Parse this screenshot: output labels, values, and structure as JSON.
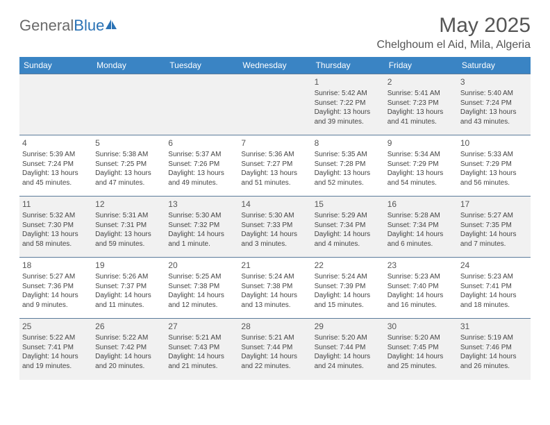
{
  "logo": {
    "text_gray": "General",
    "text_blue": "Blue"
  },
  "title": "May 2025",
  "location": "Chelghoum el Aid, Mila, Algeria",
  "colors": {
    "header_bg": "#3a84c4",
    "header_text": "#ffffff",
    "row_alt_bg": "#f1f1f1",
    "row_bg": "#ffffff",
    "border": "#5a7a9a",
    "body_text": "#444444",
    "title_text": "#555555"
  },
  "day_headers": [
    "Sunday",
    "Monday",
    "Tuesday",
    "Wednesday",
    "Thursday",
    "Friday",
    "Saturday"
  ],
  "weeks": [
    [
      {
        "blank": true
      },
      {
        "blank": true
      },
      {
        "blank": true
      },
      {
        "blank": true
      },
      {
        "num": "1",
        "sunrise": "Sunrise: 5:42 AM",
        "sunset": "Sunset: 7:22 PM",
        "daylight": "Daylight: 13 hours and 39 minutes."
      },
      {
        "num": "2",
        "sunrise": "Sunrise: 5:41 AM",
        "sunset": "Sunset: 7:23 PM",
        "daylight": "Daylight: 13 hours and 41 minutes."
      },
      {
        "num": "3",
        "sunrise": "Sunrise: 5:40 AM",
        "sunset": "Sunset: 7:24 PM",
        "daylight": "Daylight: 13 hours and 43 minutes."
      }
    ],
    [
      {
        "num": "4",
        "sunrise": "Sunrise: 5:39 AM",
        "sunset": "Sunset: 7:24 PM",
        "daylight": "Daylight: 13 hours and 45 minutes."
      },
      {
        "num": "5",
        "sunrise": "Sunrise: 5:38 AM",
        "sunset": "Sunset: 7:25 PM",
        "daylight": "Daylight: 13 hours and 47 minutes."
      },
      {
        "num": "6",
        "sunrise": "Sunrise: 5:37 AM",
        "sunset": "Sunset: 7:26 PM",
        "daylight": "Daylight: 13 hours and 49 minutes."
      },
      {
        "num": "7",
        "sunrise": "Sunrise: 5:36 AM",
        "sunset": "Sunset: 7:27 PM",
        "daylight": "Daylight: 13 hours and 51 minutes."
      },
      {
        "num": "8",
        "sunrise": "Sunrise: 5:35 AM",
        "sunset": "Sunset: 7:28 PM",
        "daylight": "Daylight: 13 hours and 52 minutes."
      },
      {
        "num": "9",
        "sunrise": "Sunrise: 5:34 AM",
        "sunset": "Sunset: 7:29 PM",
        "daylight": "Daylight: 13 hours and 54 minutes."
      },
      {
        "num": "10",
        "sunrise": "Sunrise: 5:33 AM",
        "sunset": "Sunset: 7:29 PM",
        "daylight": "Daylight: 13 hours and 56 minutes."
      }
    ],
    [
      {
        "num": "11",
        "sunrise": "Sunrise: 5:32 AM",
        "sunset": "Sunset: 7:30 PM",
        "daylight": "Daylight: 13 hours and 58 minutes."
      },
      {
        "num": "12",
        "sunrise": "Sunrise: 5:31 AM",
        "sunset": "Sunset: 7:31 PM",
        "daylight": "Daylight: 13 hours and 59 minutes."
      },
      {
        "num": "13",
        "sunrise": "Sunrise: 5:30 AM",
        "sunset": "Sunset: 7:32 PM",
        "daylight": "Daylight: 14 hours and 1 minute."
      },
      {
        "num": "14",
        "sunrise": "Sunrise: 5:30 AM",
        "sunset": "Sunset: 7:33 PM",
        "daylight": "Daylight: 14 hours and 3 minutes."
      },
      {
        "num": "15",
        "sunrise": "Sunrise: 5:29 AM",
        "sunset": "Sunset: 7:34 PM",
        "daylight": "Daylight: 14 hours and 4 minutes."
      },
      {
        "num": "16",
        "sunrise": "Sunrise: 5:28 AM",
        "sunset": "Sunset: 7:34 PM",
        "daylight": "Daylight: 14 hours and 6 minutes."
      },
      {
        "num": "17",
        "sunrise": "Sunrise: 5:27 AM",
        "sunset": "Sunset: 7:35 PM",
        "daylight": "Daylight: 14 hours and 7 minutes."
      }
    ],
    [
      {
        "num": "18",
        "sunrise": "Sunrise: 5:27 AM",
        "sunset": "Sunset: 7:36 PM",
        "daylight": "Daylight: 14 hours and 9 minutes."
      },
      {
        "num": "19",
        "sunrise": "Sunrise: 5:26 AM",
        "sunset": "Sunset: 7:37 PM",
        "daylight": "Daylight: 14 hours and 11 minutes."
      },
      {
        "num": "20",
        "sunrise": "Sunrise: 5:25 AM",
        "sunset": "Sunset: 7:38 PM",
        "daylight": "Daylight: 14 hours and 12 minutes."
      },
      {
        "num": "21",
        "sunrise": "Sunrise: 5:24 AM",
        "sunset": "Sunset: 7:38 PM",
        "daylight": "Daylight: 14 hours and 13 minutes."
      },
      {
        "num": "22",
        "sunrise": "Sunrise: 5:24 AM",
        "sunset": "Sunset: 7:39 PM",
        "daylight": "Daylight: 14 hours and 15 minutes."
      },
      {
        "num": "23",
        "sunrise": "Sunrise: 5:23 AM",
        "sunset": "Sunset: 7:40 PM",
        "daylight": "Daylight: 14 hours and 16 minutes."
      },
      {
        "num": "24",
        "sunrise": "Sunrise: 5:23 AM",
        "sunset": "Sunset: 7:41 PM",
        "daylight": "Daylight: 14 hours and 18 minutes."
      }
    ],
    [
      {
        "num": "25",
        "sunrise": "Sunrise: 5:22 AM",
        "sunset": "Sunset: 7:41 PM",
        "daylight": "Daylight: 14 hours and 19 minutes."
      },
      {
        "num": "26",
        "sunrise": "Sunrise: 5:22 AM",
        "sunset": "Sunset: 7:42 PM",
        "daylight": "Daylight: 14 hours and 20 minutes."
      },
      {
        "num": "27",
        "sunrise": "Sunrise: 5:21 AM",
        "sunset": "Sunset: 7:43 PM",
        "daylight": "Daylight: 14 hours and 21 minutes."
      },
      {
        "num": "28",
        "sunrise": "Sunrise: 5:21 AM",
        "sunset": "Sunset: 7:44 PM",
        "daylight": "Daylight: 14 hours and 22 minutes."
      },
      {
        "num": "29",
        "sunrise": "Sunrise: 5:20 AM",
        "sunset": "Sunset: 7:44 PM",
        "daylight": "Daylight: 14 hours and 24 minutes."
      },
      {
        "num": "30",
        "sunrise": "Sunrise: 5:20 AM",
        "sunset": "Sunset: 7:45 PM",
        "daylight": "Daylight: 14 hours and 25 minutes."
      },
      {
        "num": "31",
        "sunrise": "Sunrise: 5:19 AM",
        "sunset": "Sunset: 7:46 PM",
        "daylight": "Daylight: 14 hours and 26 minutes."
      }
    ]
  ]
}
